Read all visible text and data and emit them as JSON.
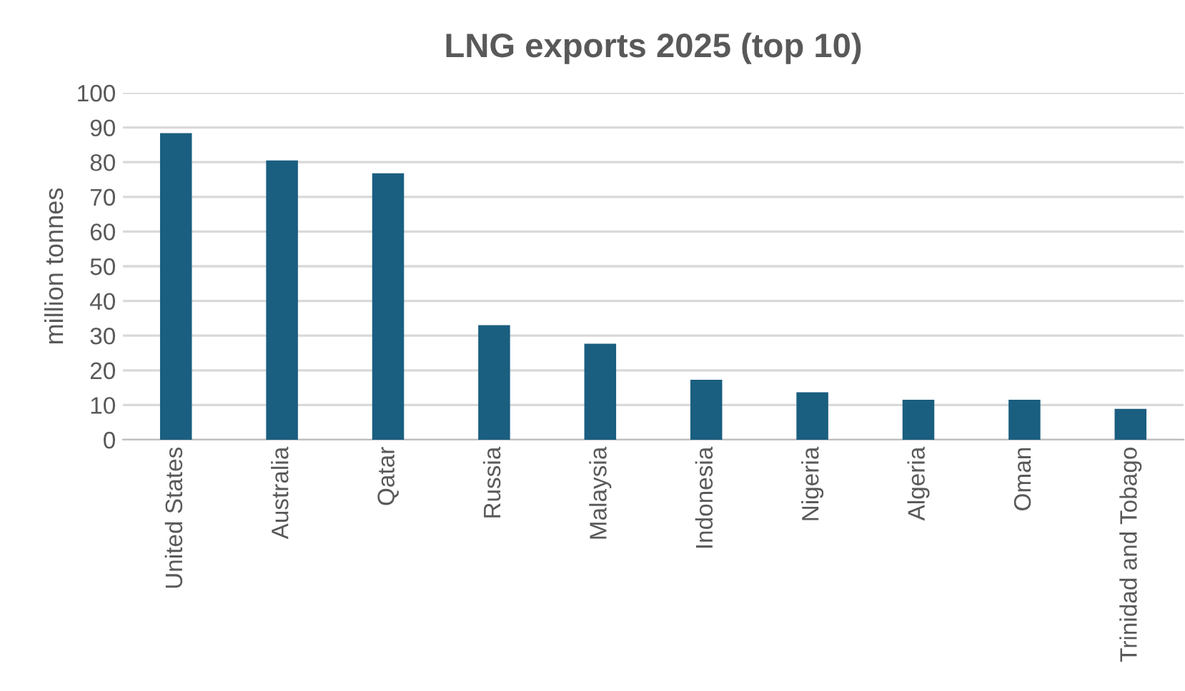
{
  "chart_data": {
    "type": "bar",
    "title": "LNG exports 2025 (top 10)",
    "ylabel": "million tonnes",
    "categories": [
      "United States",
      "Australia",
      "Qatar",
      "Russia",
      "Malaysia",
      "Indonesia",
      "Nigeria",
      "Algeria",
      "Oman",
      "Trinidad and Tobago"
    ],
    "values": [
      88.4,
      80.5,
      76.8,
      33.0,
      27.7,
      17.3,
      13.7,
      11.5,
      11.5,
      8.9
    ],
    "color": "#1a5e80",
    "ylim": [
      0,
      100
    ],
    "yticks": [
      0,
      10,
      20,
      30,
      40,
      50,
      60,
      70,
      80,
      90,
      100
    ],
    "grid": "y",
    "legend": false
  }
}
